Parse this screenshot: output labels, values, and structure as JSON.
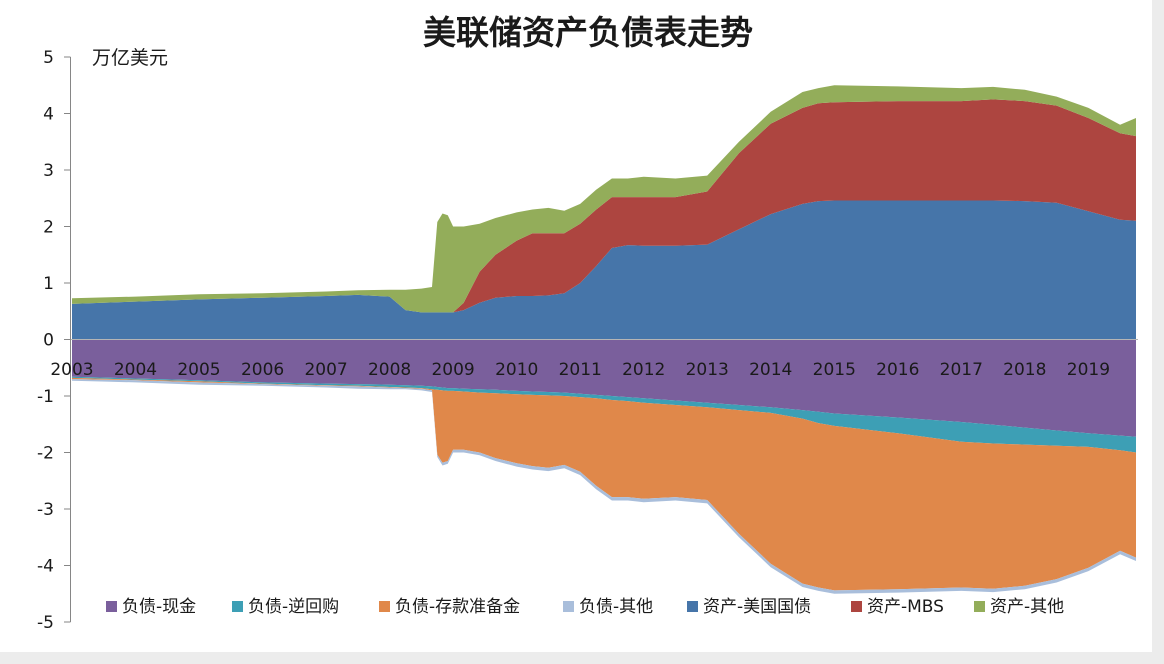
{
  "chart_data": {
    "type": "area",
    "stacked": true,
    "title": "美联储资产负债表走势",
    "ylabel": "万亿美元",
    "xlabel": "",
    "ylim": [
      -5,
      5
    ],
    "yticks": [
      5,
      4,
      3,
      2,
      1,
      0,
      -1,
      -2,
      -3,
      -4,
      -5
    ],
    "xlim": [
      "2003-01",
      "2019-10"
    ],
    "xticks": [
      "2003",
      "2004",
      "2005",
      "2006",
      "2007",
      "2008",
      "2009",
      "2010",
      "2011",
      "2012",
      "2013",
      "2014",
      "2015",
      "2016",
      "2017",
      "2018",
      "2019"
    ],
    "grid": false,
    "legend_position": "bottom",
    "x": [
      "2003-01",
      "2004-01",
      "2005-01",
      "2006-01",
      "2007-01",
      "2007-07",
      "2008-01",
      "2008-04",
      "2008-07",
      "2008-09",
      "2008-10",
      "2008-11",
      "2008-12",
      "2009-01",
      "2009-03",
      "2009-06",
      "2009-09",
      "2010-01",
      "2010-04",
      "2010-07",
      "2010-10",
      "2011-01",
      "2011-04",
      "2011-07",
      "2011-10",
      "2012-01",
      "2012-07",
      "2013-01",
      "2013-07",
      "2014-01",
      "2014-07",
      "2014-10",
      "2015-01",
      "2016-01",
      "2017-01",
      "2017-07",
      "2018-01",
      "2018-07",
      "2019-01",
      "2019-07",
      "2019-10"
    ],
    "series": [
      {
        "name": "负债-现金",
        "color": "#7a5f9c",
        "values": [
          -0.66,
          -0.69,
          -0.72,
          -0.76,
          -0.78,
          -0.79,
          -0.8,
          -0.81,
          -0.82,
          -0.83,
          -0.84,
          -0.85,
          -0.86,
          -0.86,
          -0.87,
          -0.88,
          -0.89,
          -0.91,
          -0.92,
          -0.93,
          -0.94,
          -0.96,
          -0.98,
          -1.0,
          -1.02,
          -1.04,
          -1.08,
          -1.12,
          -1.16,
          -1.2,
          -1.25,
          -1.28,
          -1.31,
          -1.38,
          -1.46,
          -1.51,
          -1.56,
          -1.61,
          -1.66,
          -1.7,
          -1.72
        ]
      },
      {
        "name": "负债-逆回购",
        "color": "#3d9fb5",
        "values": [
          -0.02,
          -0.02,
          -0.02,
          -0.02,
          -0.03,
          -0.03,
          -0.04,
          -0.04,
          -0.04,
          -0.05,
          -0.05,
          -0.05,
          -0.05,
          -0.05,
          -0.05,
          -0.06,
          -0.06,
          -0.06,
          -0.06,
          -0.06,
          -0.06,
          -0.06,
          -0.06,
          -0.07,
          -0.07,
          -0.08,
          -0.08,
          -0.08,
          -0.09,
          -0.1,
          -0.15,
          -0.2,
          -0.22,
          -0.28,
          -0.35,
          -0.33,
          -0.3,
          -0.27,
          -0.24,
          -0.26,
          -0.28
        ]
      },
      {
        "name": "负债-存款准备金",
        "color": "#e0884a",
        "values": [
          -0.02,
          -0.01,
          -0.02,
          -0.01,
          -0.01,
          -0.01,
          -0.01,
          -0.01,
          -0.01,
          -0.02,
          -1.15,
          -1.28,
          -1.24,
          -1.04,
          -1.03,
          -1.06,
          -1.15,
          -1.22,
          -1.26,
          -1.28,
          -1.22,
          -1.32,
          -1.55,
          -1.72,
          -1.7,
          -1.7,
          -1.63,
          -1.64,
          -2.19,
          -2.67,
          -2.92,
          -2.91,
          -2.91,
          -2.76,
          -2.58,
          -2.57,
          -2.5,
          -2.36,
          -2.14,
          -1.78,
          -1.86
        ]
      },
      {
        "name": "负债-其他",
        "color": "#a9bedb",
        "values": [
          -0.03,
          -0.04,
          -0.04,
          -0.03,
          -0.03,
          -0.04,
          -0.03,
          -0.02,
          -0.03,
          -0.03,
          -0.04,
          -0.05,
          -0.05,
          -0.05,
          -0.05,
          -0.05,
          -0.05,
          -0.06,
          -0.06,
          -0.06,
          -0.06,
          -0.06,
          -0.06,
          -0.06,
          -0.06,
          -0.06,
          -0.06,
          -0.06,
          -0.06,
          -0.06,
          -0.06,
          -0.06,
          -0.06,
          -0.06,
          -0.06,
          -0.06,
          -0.06,
          -0.06,
          -0.06,
          -0.06,
          -0.06
        ]
      },
      {
        "name": "资产-美国国债",
        "color": "#4675a9",
        "values": [
          0.63,
          0.67,
          0.71,
          0.74,
          0.77,
          0.79,
          0.76,
          0.52,
          0.48,
          0.48,
          0.48,
          0.48,
          0.48,
          0.48,
          0.52,
          0.65,
          0.74,
          0.77,
          0.77,
          0.78,
          0.82,
          1.0,
          1.3,
          1.62,
          1.67,
          1.66,
          1.66,
          1.68,
          1.95,
          2.22,
          2.4,
          2.45,
          2.46,
          2.46,
          2.46,
          2.46,
          2.45,
          2.42,
          2.27,
          2.12,
          2.1
        ]
      },
      {
        "name": "资产-MBS",
        "color": "#ad4540",
        "values": [
          0,
          0,
          0,
          0,
          0,
          0,
          0,
          0,
          0,
          0,
          0,
          0,
          0,
          0,
          0.13,
          0.55,
          0.76,
          0.98,
          1.11,
          1.1,
          1.06,
          1.05,
          1.0,
          0.9,
          0.85,
          0.86,
          0.86,
          0.94,
          1.35,
          1.6,
          1.7,
          1.73,
          1.74,
          1.76,
          1.76,
          1.79,
          1.77,
          1.72,
          1.65,
          1.53,
          1.5
        ]
      },
      {
        "name": "资产-其他",
        "color": "#93ad5a",
        "values": [
          0.1,
          0.09,
          0.09,
          0.08,
          0.08,
          0.08,
          0.12,
          0.36,
          0.42,
          0.45,
          1.6,
          1.75,
          1.72,
          1.52,
          1.35,
          0.85,
          0.65,
          0.5,
          0.42,
          0.45,
          0.4,
          0.35,
          0.35,
          0.33,
          0.33,
          0.36,
          0.33,
          0.28,
          0.2,
          0.21,
          0.28,
          0.27,
          0.3,
          0.26,
          0.23,
          0.22,
          0.2,
          0.16,
          0.18,
          0.15,
          0.32
        ]
      }
    ]
  }
}
